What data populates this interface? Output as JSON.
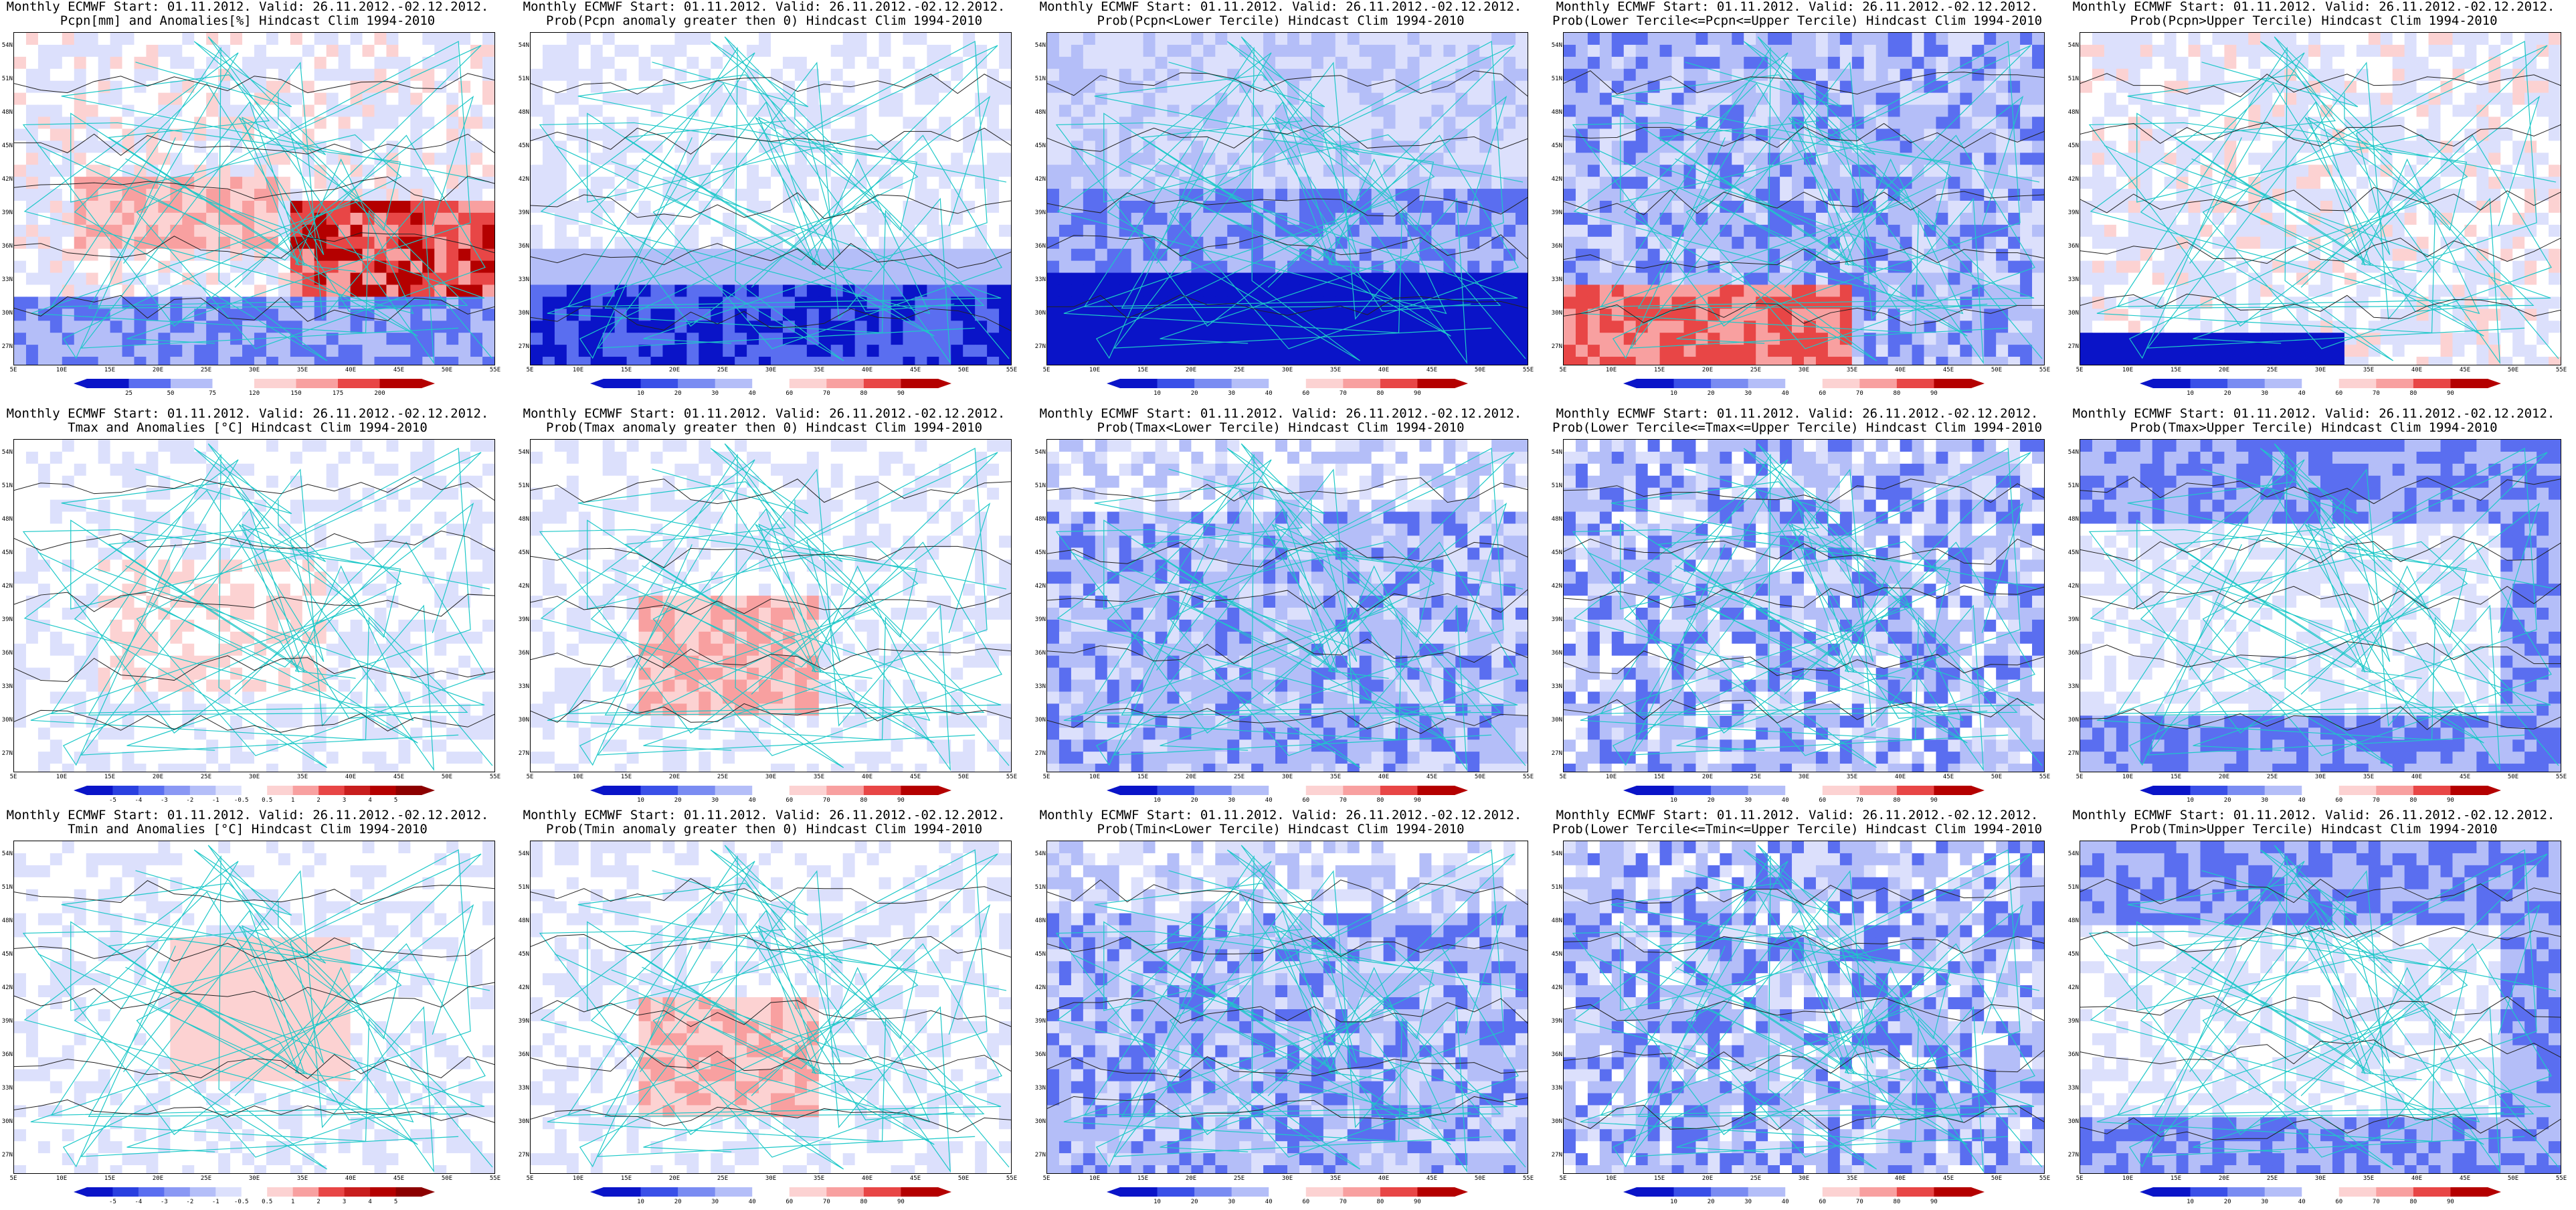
{
  "figure": {
    "row_titles": [
      {
        "line1": "Monthly ECMWF Start: 01.11.2012. Valid: 26.11.2012.-02.12.2012.",
        "subtitles": [
          "Pcpn[mm] and Anomalies[%] Hindcast Clim 1994-2010",
          "Prob(Pcpn anomaly greater then 0) Hindcast Clim 1994-2010",
          "Prob(Pcpn<Lower Tercile) Hindcast Clim 1994-2010",
          "Prob(Lower Tercile<=Pcpn<=Upper Tercile) Hindcast Clim 1994-2010",
          "Prob(Pcpn>Upper Tercile) Hindcast Clim 1994-2010"
        ]
      },
      {
        "line1": "Monthly ECMWF Start: 01.11.2012. Valid: 26.11.2012.-02.12.2012.",
        "subtitles": [
          "Tmax and Anomalies [°C] Hindcast Clim 1994-2010",
          "Prob(Tmax anomaly greater then 0) Hindcast Clim 1994-2010",
          "Prob(Tmax<Lower Tercile) Hindcast Clim 1994-2010",
          "Prob(Lower Tercile<=Tmax<=Upper Tercile) Hindcast Clim 1994-2010",
          "Prob(Tmax>Upper Tercile) Hindcast Clim 1994-2010"
        ]
      },
      {
        "line1": "Monthly ECMWF Start: 01.11.2012. Valid: 26.11.2012.-02.12.2012.",
        "subtitles": [
          "Tmin and Anomalies [°C] Hindcast Clim 1994-2010",
          "Prob(Tmin anomaly greater then 0) Hindcast Clim 1994-2010",
          "Prob(Tmin<Lower Tercile) Hindcast Clim 1994-2010",
          "Prob(Lower Tercile<=Tmin<=Upper Tercile) Hindcast Clim 1994-2010",
          "Prob(Tmin>Upper Tercile) Hindcast Clim 1994-2010"
        ]
      }
    ],
    "lat_ticks": [
      "54N",
      "51N",
      "48N",
      "45N",
      "42N",
      "39N",
      "36N",
      "33N",
      "30N",
      "27N"
    ],
    "lon_ticks": [
      "5E",
      "10E",
      "15E",
      "20E",
      "25E",
      "30E",
      "35E",
      "40E",
      "45E",
      "50E",
      "55E"
    ],
    "colorbars": {
      "pcpn_anom": [
        "25",
        "50",
        "75",
        "120",
        "150",
        "175",
        "200"
      ],
      "prob": [
        "10",
        "20",
        "30",
        "40",
        "60",
        "70",
        "80",
        "90"
      ],
      "temp_anom": [
        "-5",
        "-4",
        "-3",
        "-2",
        "-1",
        "-0.5",
        "0.5",
        "1",
        "2",
        "3",
        "4",
        "5"
      ]
    },
    "colors": {
      "deep_blue": "#0a14c8",
      "mid_blue": "#5a6ef0",
      "light_blue": "#b4bef8",
      "pale_blue": "#dce0fc",
      "pale_red": "#fcd2d2",
      "light_red": "#f8a0a0",
      "mid_red": "#e84646",
      "deep_red": "#b40000",
      "coast": "#1ec8c8",
      "contour": "#222222"
    }
  },
  "chart_data": [
    {
      "type": "heatmap",
      "title": "Pcpn[mm] and Anomalies[%] Hindcast Clim 1994-2010",
      "colorbar": [
        "25",
        "50",
        "75",
        "120",
        "150",
        "175",
        "200"
      ],
      "scheme": "pcpn"
    },
    {
      "type": "heatmap",
      "title": "Prob(Pcpn anomaly greater then 0) Hindcast Clim 1994-2010",
      "colorbar": [
        "10",
        "20",
        "30",
        "40",
        "60",
        "70",
        "80",
        "90"
      ],
      "scheme": "prob_pcpn_gt0"
    },
    {
      "type": "heatmap",
      "title": "Prob(Pcpn<Lower Tercile) Hindcast Clim 1994-2010",
      "colorbar": [
        "10",
        "20",
        "30",
        "40",
        "60",
        "70",
        "80",
        "90"
      ],
      "scheme": "prob_blue_heavy"
    },
    {
      "type": "heatmap",
      "title": "Prob(Lower Tercile<=Pcpn<=Upper Tercile) Hindcast Clim 1994-2010",
      "colorbar": [
        "10",
        "20",
        "30",
        "40",
        "60",
        "70",
        "80",
        "90"
      ],
      "scheme": "prob_mid_red_south"
    },
    {
      "type": "heatmap",
      "title": "Prob(Pcpn>Upper Tercile) Hindcast Clim 1994-2010",
      "colorbar": [
        "10",
        "20",
        "30",
        "40",
        "60",
        "70",
        "80",
        "90"
      ],
      "scheme": "prob_light"
    },
    {
      "type": "heatmap",
      "title": "Tmax and Anomalies [°C] Hindcast Clim 1994-2010",
      "colorbar": [
        "-5",
        "-4",
        "-3",
        "-2",
        "-1",
        "-0.5",
        "0.5",
        "1",
        "2",
        "3",
        "4",
        "5"
      ],
      "scheme": "temp_anom_light"
    },
    {
      "type": "heatmap",
      "title": "Prob(Tmax anomaly greater then 0) Hindcast Clim 1994-2010",
      "colorbar": [
        "10",
        "20",
        "30",
        "40",
        "60",
        "70",
        "80",
        "90"
      ],
      "scheme": "prob_light_red_center"
    },
    {
      "type": "heatmap",
      "title": "Prob(Tmax<Lower Tercile) Hindcast Clim 1994-2010",
      "colorbar": [
        "10",
        "20",
        "30",
        "40",
        "60",
        "70",
        "80",
        "90"
      ],
      "scheme": "prob_blue_mixed"
    },
    {
      "type": "heatmap",
      "title": "Prob(Lower Tercile<=Tmax<=Upper Tercile) Hindcast Clim 1994-2010",
      "colorbar": [
        "10",
        "20",
        "30",
        "40",
        "60",
        "70",
        "80",
        "90"
      ],
      "scheme": "prob_blue_heavy_mixed"
    },
    {
      "type": "heatmap",
      "title": "Prob(Tmax>Upper Tercile) Hindcast Clim 1994-2010",
      "colorbar": [
        "10",
        "20",
        "30",
        "40",
        "60",
        "70",
        "80",
        "90"
      ],
      "scheme": "prob_blue_edges"
    },
    {
      "type": "heatmap",
      "title": "Tmin and Anomalies [°C] Hindcast Clim 1994-2010",
      "colorbar": [
        "-5",
        "-4",
        "-3",
        "-2",
        "-1",
        "-0.5",
        "0.5",
        "1",
        "2",
        "3",
        "4",
        "5"
      ],
      "scheme": "temp_anom_light_red"
    },
    {
      "type": "heatmap",
      "title": "Prob(Tmin anomaly greater then 0) Hindcast Clim 1994-2010",
      "colorbar": [
        "10",
        "20",
        "30",
        "40",
        "60",
        "70",
        "80",
        "90"
      ],
      "scheme": "prob_light_red_center"
    },
    {
      "type": "heatmap",
      "title": "Prob(Tmin<Lower Tercile) Hindcast Clim 1994-2010",
      "colorbar": [
        "10",
        "20",
        "30",
        "40",
        "60",
        "70",
        "80",
        "90"
      ],
      "scheme": "prob_blue_mixed"
    },
    {
      "type": "heatmap",
      "title": "Prob(Lower Tercile<=Tmin<=Upper Tercile) Hindcast Clim 1994-2010",
      "colorbar": [
        "10",
        "20",
        "30",
        "40",
        "60",
        "70",
        "80",
        "90"
      ],
      "scheme": "prob_blue_heavy_mixed"
    },
    {
      "type": "heatmap",
      "title": "Prob(Tmin>Upper Tercile) Hindcast Clim 1994-2010",
      "colorbar": [
        "10",
        "20",
        "30",
        "40",
        "60",
        "70",
        "80",
        "90"
      ],
      "scheme": "prob_blue_edges"
    }
  ]
}
